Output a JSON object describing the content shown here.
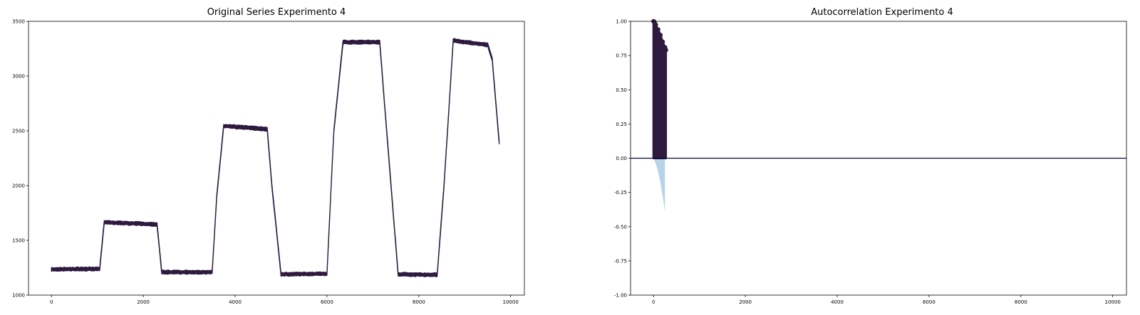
{
  "colors": {
    "series": "#2e1a3f",
    "confidence_band": "#b8d4e8",
    "axes": "#000000",
    "zero_line": "#0b0b3a"
  },
  "chart_data": [
    {
      "type": "line",
      "title": "Original Series Experimento 4",
      "xlabel": "",
      "ylabel": "",
      "xlim": [
        -500,
        10300
      ],
      "ylim": [
        1000,
        3500
      ],
      "xticks": [
        0,
        2000,
        4000,
        6000,
        8000,
        10000
      ],
      "yticks": [
        1000,
        1500,
        2000,
        2500,
        3000,
        3500
      ],
      "grid": false,
      "series": [
        {
          "noise_band": 40,
          "points": [
            [
              0,
              1235
            ],
            [
              1050,
              1240
            ],
            [
              1150,
              1665
            ],
            [
              2300,
              1645
            ],
            [
              2400,
              1210
            ],
            [
              3500,
              1210
            ],
            [
              3600,
              1900
            ],
            [
              3750,
              2545
            ],
            [
              4700,
              2515
            ],
            [
              4800,
              2000
            ],
            [
              5000,
              1190
            ],
            [
              6000,
              1195
            ],
            [
              6150,
              2500
            ],
            [
              6350,
              3310
            ],
            [
              7150,
              3310
            ],
            [
              7300,
              2500
            ],
            [
              7550,
              1190
            ],
            [
              8400,
              1185
            ],
            [
              8550,
              2000
            ],
            [
              8750,
              3325
            ],
            [
              9500,
              3285
            ],
            [
              9600,
              3150
            ],
            [
              9750,
              2400
            ]
          ]
        }
      ]
    },
    {
      "type": "area",
      "title": "Autocorrelation Experimento 4",
      "xlabel": "",
      "ylabel": "",
      "xlim": [
        -500,
        10300
      ],
      "ylim": [
        -1.0,
        1.0
      ],
      "xticks": [
        0,
        2000,
        4000,
        6000,
        8000,
        10000
      ],
      "yticks": [
        -1.0,
        -0.75,
        -0.5,
        -0.25,
        0.0,
        0.25,
        0.5,
        0.75,
        1.0
      ],
      "ytick_labels": [
        "-1.00",
        "-0.75",
        "-0.50",
        "-0.25",
        "0.00",
        "0.25",
        "0.50",
        "0.75",
        "1.00"
      ],
      "grid": false,
      "series": [
        {
          "kind": "acf",
          "lags": [
            0,
            20,
            50,
            100,
            150,
            200,
            250,
            270
          ],
          "values": [
            1.0,
            0.995,
            0.975,
            0.94,
            0.9,
            0.85,
            0.81,
            0.79
          ]
        },
        {
          "kind": "confidence_interval",
          "lags": [
            0,
            25,
            50,
            100,
            150,
            200,
            250
          ],
          "upper": [
            0.0,
            0.02,
            0.04,
            0.1,
            0.18,
            0.28,
            0.39
          ],
          "lower": [
            0.0,
            -0.02,
            -0.04,
            -0.1,
            -0.18,
            -0.28,
            -0.39
          ]
        }
      ]
    }
  ]
}
